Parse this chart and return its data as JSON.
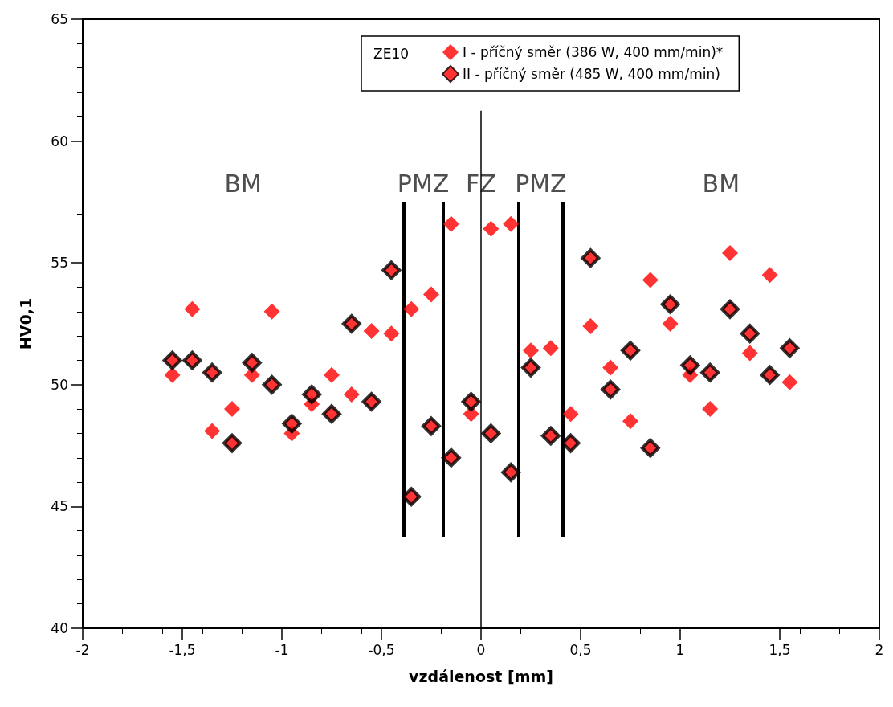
{
  "chart_data": {
    "type": "scatter",
    "xlabel": "vzdálenost [mm]",
    "ylabel": "HV0,1",
    "legend_title": "ZE10",
    "legend": "top right",
    "marker": "diamond",
    "grid": false,
    "x": [
      -1.55,
      -1.45,
      -1.35,
      -1.25,
      -1.15,
      -1.05,
      -0.95,
      -0.85,
      -0.75,
      -0.65,
      -0.55,
      -0.45,
      -0.35,
      -0.25,
      -0.15,
      -0.05,
      0.05,
      0.15,
      0.25,
      0.35,
      0.45,
      0.55,
      0.65,
      0.75,
      0.85,
      0.95,
      1.05,
      1.15,
      1.25,
      1.35,
      1.45,
      1.55
    ],
    "series": [
      {
        "name": "I - příčný směr (386 W, 400 mm/min)*",
        "color": "#ff0000",
        "values": [
          50.4,
          53.1,
          48.1,
          49.0,
          50.4,
          53.0,
          48.0,
          49.2,
          50.4,
          49.6,
          52.2,
          52.1,
          53.1,
          53.7,
          56.6,
          48.8,
          56.4,
          56.6,
          51.4,
          51.5,
          48.8,
          52.4,
          50.7,
          48.5,
          54.3,
          52.5,
          50.4,
          49.0,
          55.4,
          51.3,
          54.5,
          50.1
        ]
      },
      {
        "name": "II - příčný směr (485 W, 400 mm/min)",
        "color": "#000000",
        "values": [
          51.0,
          51.0,
          50.5,
          47.6,
          50.9,
          50.0,
          48.4,
          49.6,
          48.8,
          52.5,
          49.3,
          54.7,
          45.4,
          48.3,
          47.0,
          49.3,
          48.0,
          46.4,
          50.7,
          47.9,
          47.6,
          55.2,
          49.8,
          51.4,
          47.4,
          53.3,
          50.8,
          50.5,
          53.1,
          52.1,
          50.4,
          51.5
        ]
      }
    ],
    "xlim": [
      -2,
      2
    ],
    "xticks": [
      -2,
      {
        "value": -1.5,
        "label": "-1,5"
      },
      -1,
      {
        "value": -0.5,
        "label": "-0,5"
      },
      0,
      {
        "value": 0.5,
        "label": "0,5"
      },
      1,
      {
        "value": 1.5,
        "label": "1,5"
      },
      2
    ],
    "ylim": [
      40,
      65
    ],
    "yticks": [
      40,
      45,
      50,
      55,
      60,
      65
    ],
    "ref_lines": [
      {
        "axis": "x",
        "value": 0,
        "color": "#000000",
        "line_style": "solid"
      },
      {
        "axis": "x",
        "value": -0.39,
        "color": "#000000"
      },
      {
        "axis": "x",
        "value": -0.19,
        "color": "#000000"
      },
      {
        "axis": "x",
        "value": 0.19,
        "color": "#000000"
      },
      {
        "axis": "x",
        "value": 0.41,
        "color": "#000000"
      }
    ],
    "annotations": [
      "BM",
      "PMZ",
      "FZ",
      "PMZ",
      "BM"
    ]
  }
}
